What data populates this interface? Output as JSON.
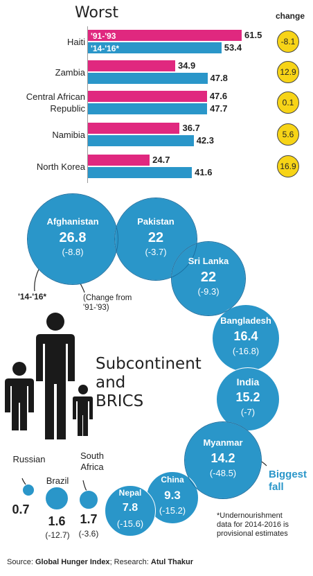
{
  "worst": {
    "title": "Worst",
    "change_header": "change",
    "period_labels": [
      "'91-'93",
      "'14-'16*"
    ],
    "rows": [
      {
        "country": [
          "Haiti"
        ],
        "v9193": 61.5,
        "v1416": 53.4,
        "change": "-8.1"
      },
      {
        "country": [
          "Zambia"
        ],
        "v9193": 34.9,
        "v1416": 47.8,
        "change": "12.9"
      },
      {
        "country": [
          "Central African",
          "Republic"
        ],
        "v9193": 47.6,
        "v1416": 47.7,
        "change": "0.1"
      },
      {
        "country": [
          "Namibia"
        ],
        "v9193": 36.7,
        "v1416": 42.3,
        "change": "5.6"
      },
      {
        "country": [
          "North Korea"
        ],
        "v9193": 24.7,
        "v1416": 41.6,
        "change": "16.9"
      }
    ]
  },
  "chart_data": {
    "type": "bar",
    "title": "Worst",
    "categories": [
      "Haiti",
      "Zambia",
      "Central African Republic",
      "Namibia",
      "North Korea"
    ],
    "series": [
      {
        "name": "'91-'93",
        "values": [
          61.5,
          34.9,
          47.6,
          36.7,
          24.7
        ]
      },
      {
        "name": "'14-'16*",
        "values": [
          53.4,
          47.8,
          47.7,
          42.3,
          41.6
        ]
      }
    ],
    "change": [
      "-8.1",
      "12.9",
      "0.1",
      "5.6",
      "16.9"
    ],
    "bubbles": [
      {
        "name": "Afghanistan",
        "value": "26.8",
        "change": "(-8.8)"
      },
      {
        "name": "Pakistan",
        "value": "22",
        "change": "(-3.7)"
      },
      {
        "name": "Sri Lanka",
        "value": "22",
        "change": "(-9.3)"
      },
      {
        "name": "Bangladesh",
        "value": "16.4",
        "change": "(-16.8)"
      },
      {
        "name": "India",
        "value": "15.2",
        "change": "(-7)"
      },
      {
        "name": "Myanmar",
        "value": "14.2",
        "change": "(-48.5)"
      },
      {
        "name": "China",
        "value": "9.3",
        "change": "(-15.2)"
      },
      {
        "name": "Nepal",
        "value": "7.8",
        "change": "(-15.6)"
      },
      {
        "name": "South Africa",
        "value": "1.7",
        "change": "(-3.6)"
      },
      {
        "name": "Brazil",
        "value": "1.6",
        "change": "(-12.7)"
      },
      {
        "name": "Russian",
        "value": "0.7",
        "change": ""
      }
    ]
  },
  "bubble_section": {
    "title_lines": [
      "Subcontinent",
      "and",
      "BRICS"
    ],
    "annotation_period": "'14-'16*",
    "annotation_change": [
      "(Change from",
      "'91-'93)"
    ],
    "biggest_fall": [
      "Biggest",
      "fall"
    ],
    "footnote": [
      "*Undernourishment",
      "data for 2014-2016 is",
      "provisional estimates"
    ]
  },
  "colors": {
    "pink": "#e0287f",
    "blue": "#2a96c9",
    "yellow": "#f7d417"
  },
  "source": {
    "prefix": "Source:",
    "source_name": "Global Hunger Index",
    "research_prefix": "; Research:",
    "researcher": "Atul Thakur"
  }
}
